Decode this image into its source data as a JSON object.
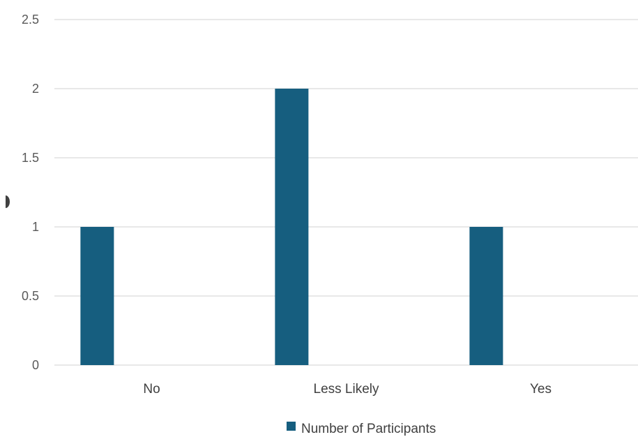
{
  "chart_data": {
    "type": "bar",
    "categories": [
      "No",
      "Less Likely",
      "Yes"
    ],
    "series": [
      {
        "name": "Number of Participants",
        "values": [
          1,
          2,
          1
        ]
      }
    ],
    "ylim": [
      0,
      2.5
    ],
    "y_ticks": [
      0,
      0.5,
      1,
      1.5,
      2,
      2.5
    ],
    "y_tick_labels": [
      "0",
      "0.5",
      "1",
      "1.5",
      "2",
      "2.5"
    ],
    "grid": true,
    "legend_position": "bottom",
    "colors": {
      "bar": "#165e7f",
      "grid": "#d9d9d9",
      "text": "#404040"
    }
  }
}
